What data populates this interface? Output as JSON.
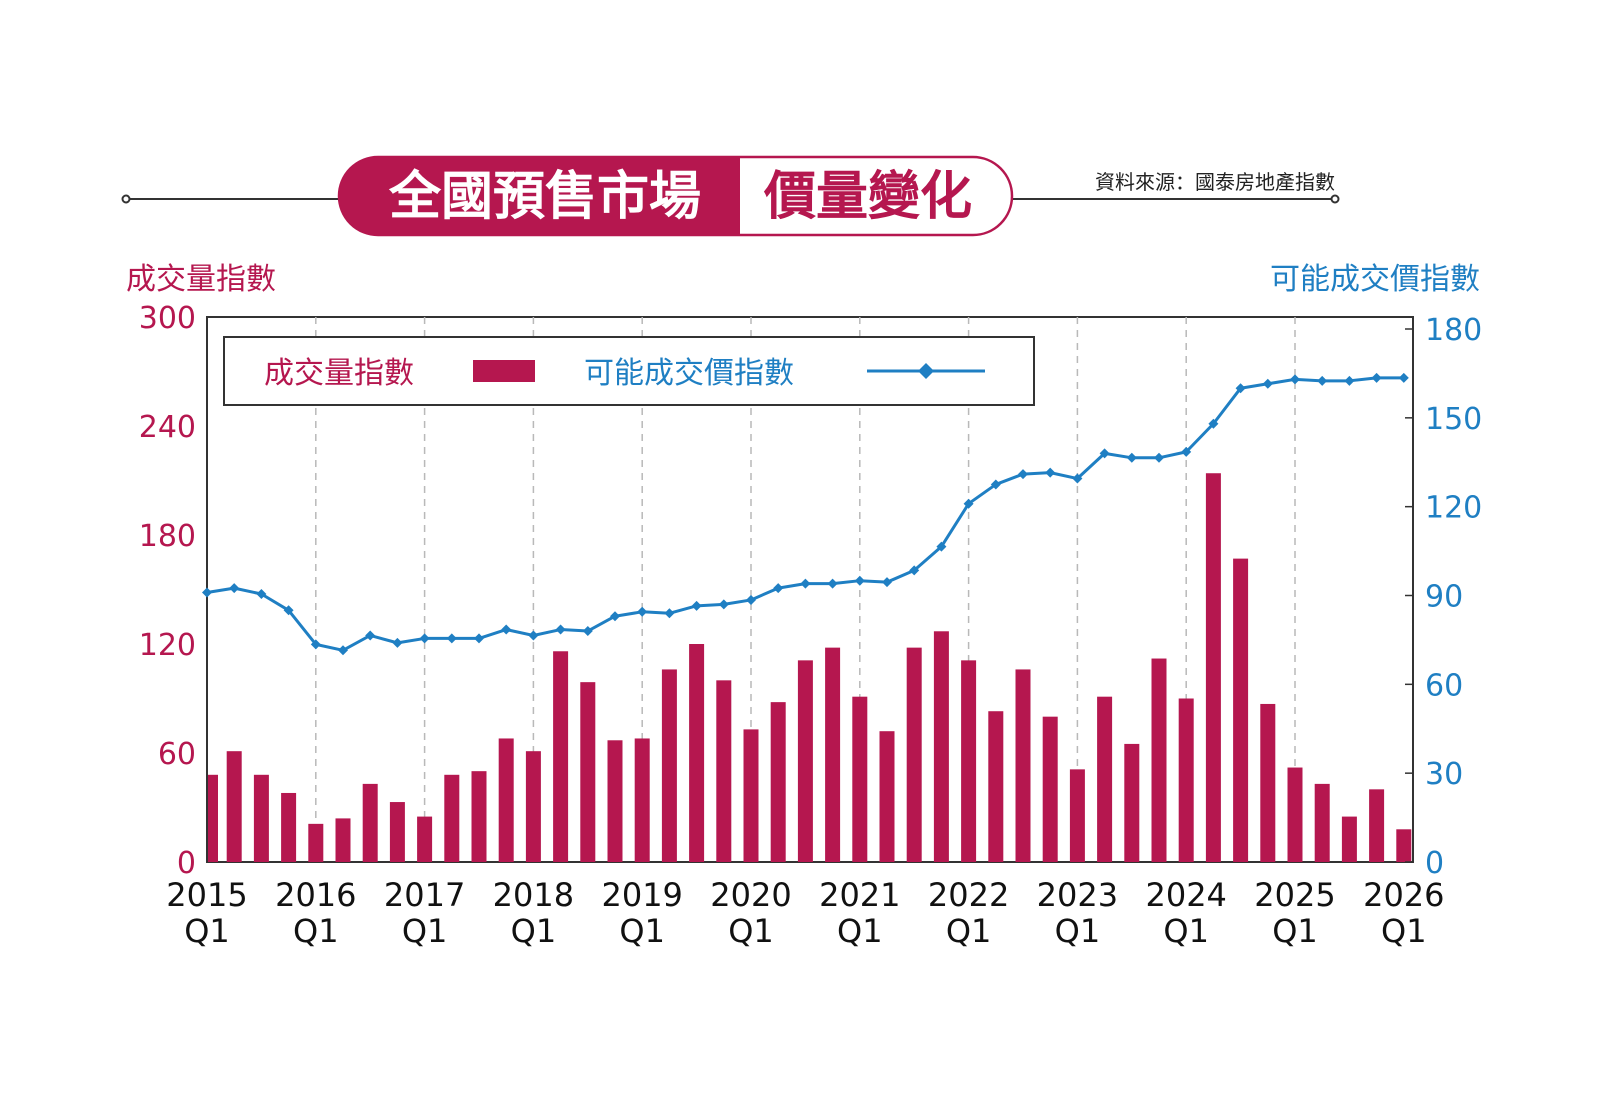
{
  "header": {
    "title_main": "全國預售市場",
    "title_accent": "價量變化",
    "source": "資料來源：國泰房地產指數"
  },
  "colors": {
    "bar": "#b5174f",
    "line": "#1f7fc3",
    "accent": "#b5174f"
  },
  "chart_data": {
    "type": "bar+line",
    "xlabel": "",
    "x_tick_labels": [
      [
        "2015",
        "Q1"
      ],
      [
        "2016",
        "Q1"
      ],
      [
        "2017",
        "Q1"
      ],
      [
        "2018",
        "Q1"
      ],
      [
        "2019",
        "Q1"
      ],
      [
        "2020",
        "Q1"
      ],
      [
        "2021",
        "Q1"
      ],
      [
        "2022",
        "Q1"
      ],
      [
        "2023",
        "Q1"
      ],
      [
        "2024",
        "Q1"
      ],
      [
        "2025",
        "Q1"
      ],
      [
        "2026",
        "Q1"
      ]
    ],
    "left_axis": {
      "title": "成交量指數",
      "ylim": [
        0,
        300
      ],
      "ticks": [
        0,
        60,
        120,
        180,
        240,
        300
      ]
    },
    "right_axis": {
      "title": "可能成交價指數",
      "ylim": [
        0,
        180
      ],
      "ticks": [
        0,
        30,
        60,
        90,
        120,
        150,
        180
      ]
    },
    "legend": {
      "placement": "top-left",
      "volume_label": "成交量指數",
      "price_label": "可能成交價指數"
    },
    "grid": "vertical-dashed-at-Q1",
    "series": [
      {
        "name": "成交量指數",
        "type": "bar",
        "axis": "left",
        "values": [
          48,
          61,
          48,
          38,
          21,
          24,
          43,
          33,
          25,
          48,
          50,
          68,
          61,
          116,
          99,
          67,
          68,
          106,
          120,
          100,
          73,
          88,
          111,
          118,
          91,
          72,
          118,
          127,
          111,
          83,
          106,
          80,
          51,
          91,
          65,
          112,
          90,
          214,
          167,
          87,
          52,
          43,
          25,
          40,
          18
        ]
      },
      {
        "name": "可能成交價指數",
        "type": "line",
        "axis": "right",
        "values": [
          91,
          92.5,
          90.5,
          85,
          73.5,
          71.5,
          76.5,
          74,
          75.5,
          75.5,
          75.5,
          78.5,
          76.5,
          78.5,
          78,
          83,
          84.5,
          84,
          86.5,
          87,
          88.5,
          92.5,
          94,
          94,
          95,
          94.5,
          98.5,
          106.5,
          121,
          127.5,
          131,
          131.5,
          129.5,
          138,
          136.5,
          136.5,
          138.5,
          148,
          160,
          161.5,
          163,
          162.5,
          162.5,
          163.5,
          163.5
        ]
      }
    ]
  }
}
